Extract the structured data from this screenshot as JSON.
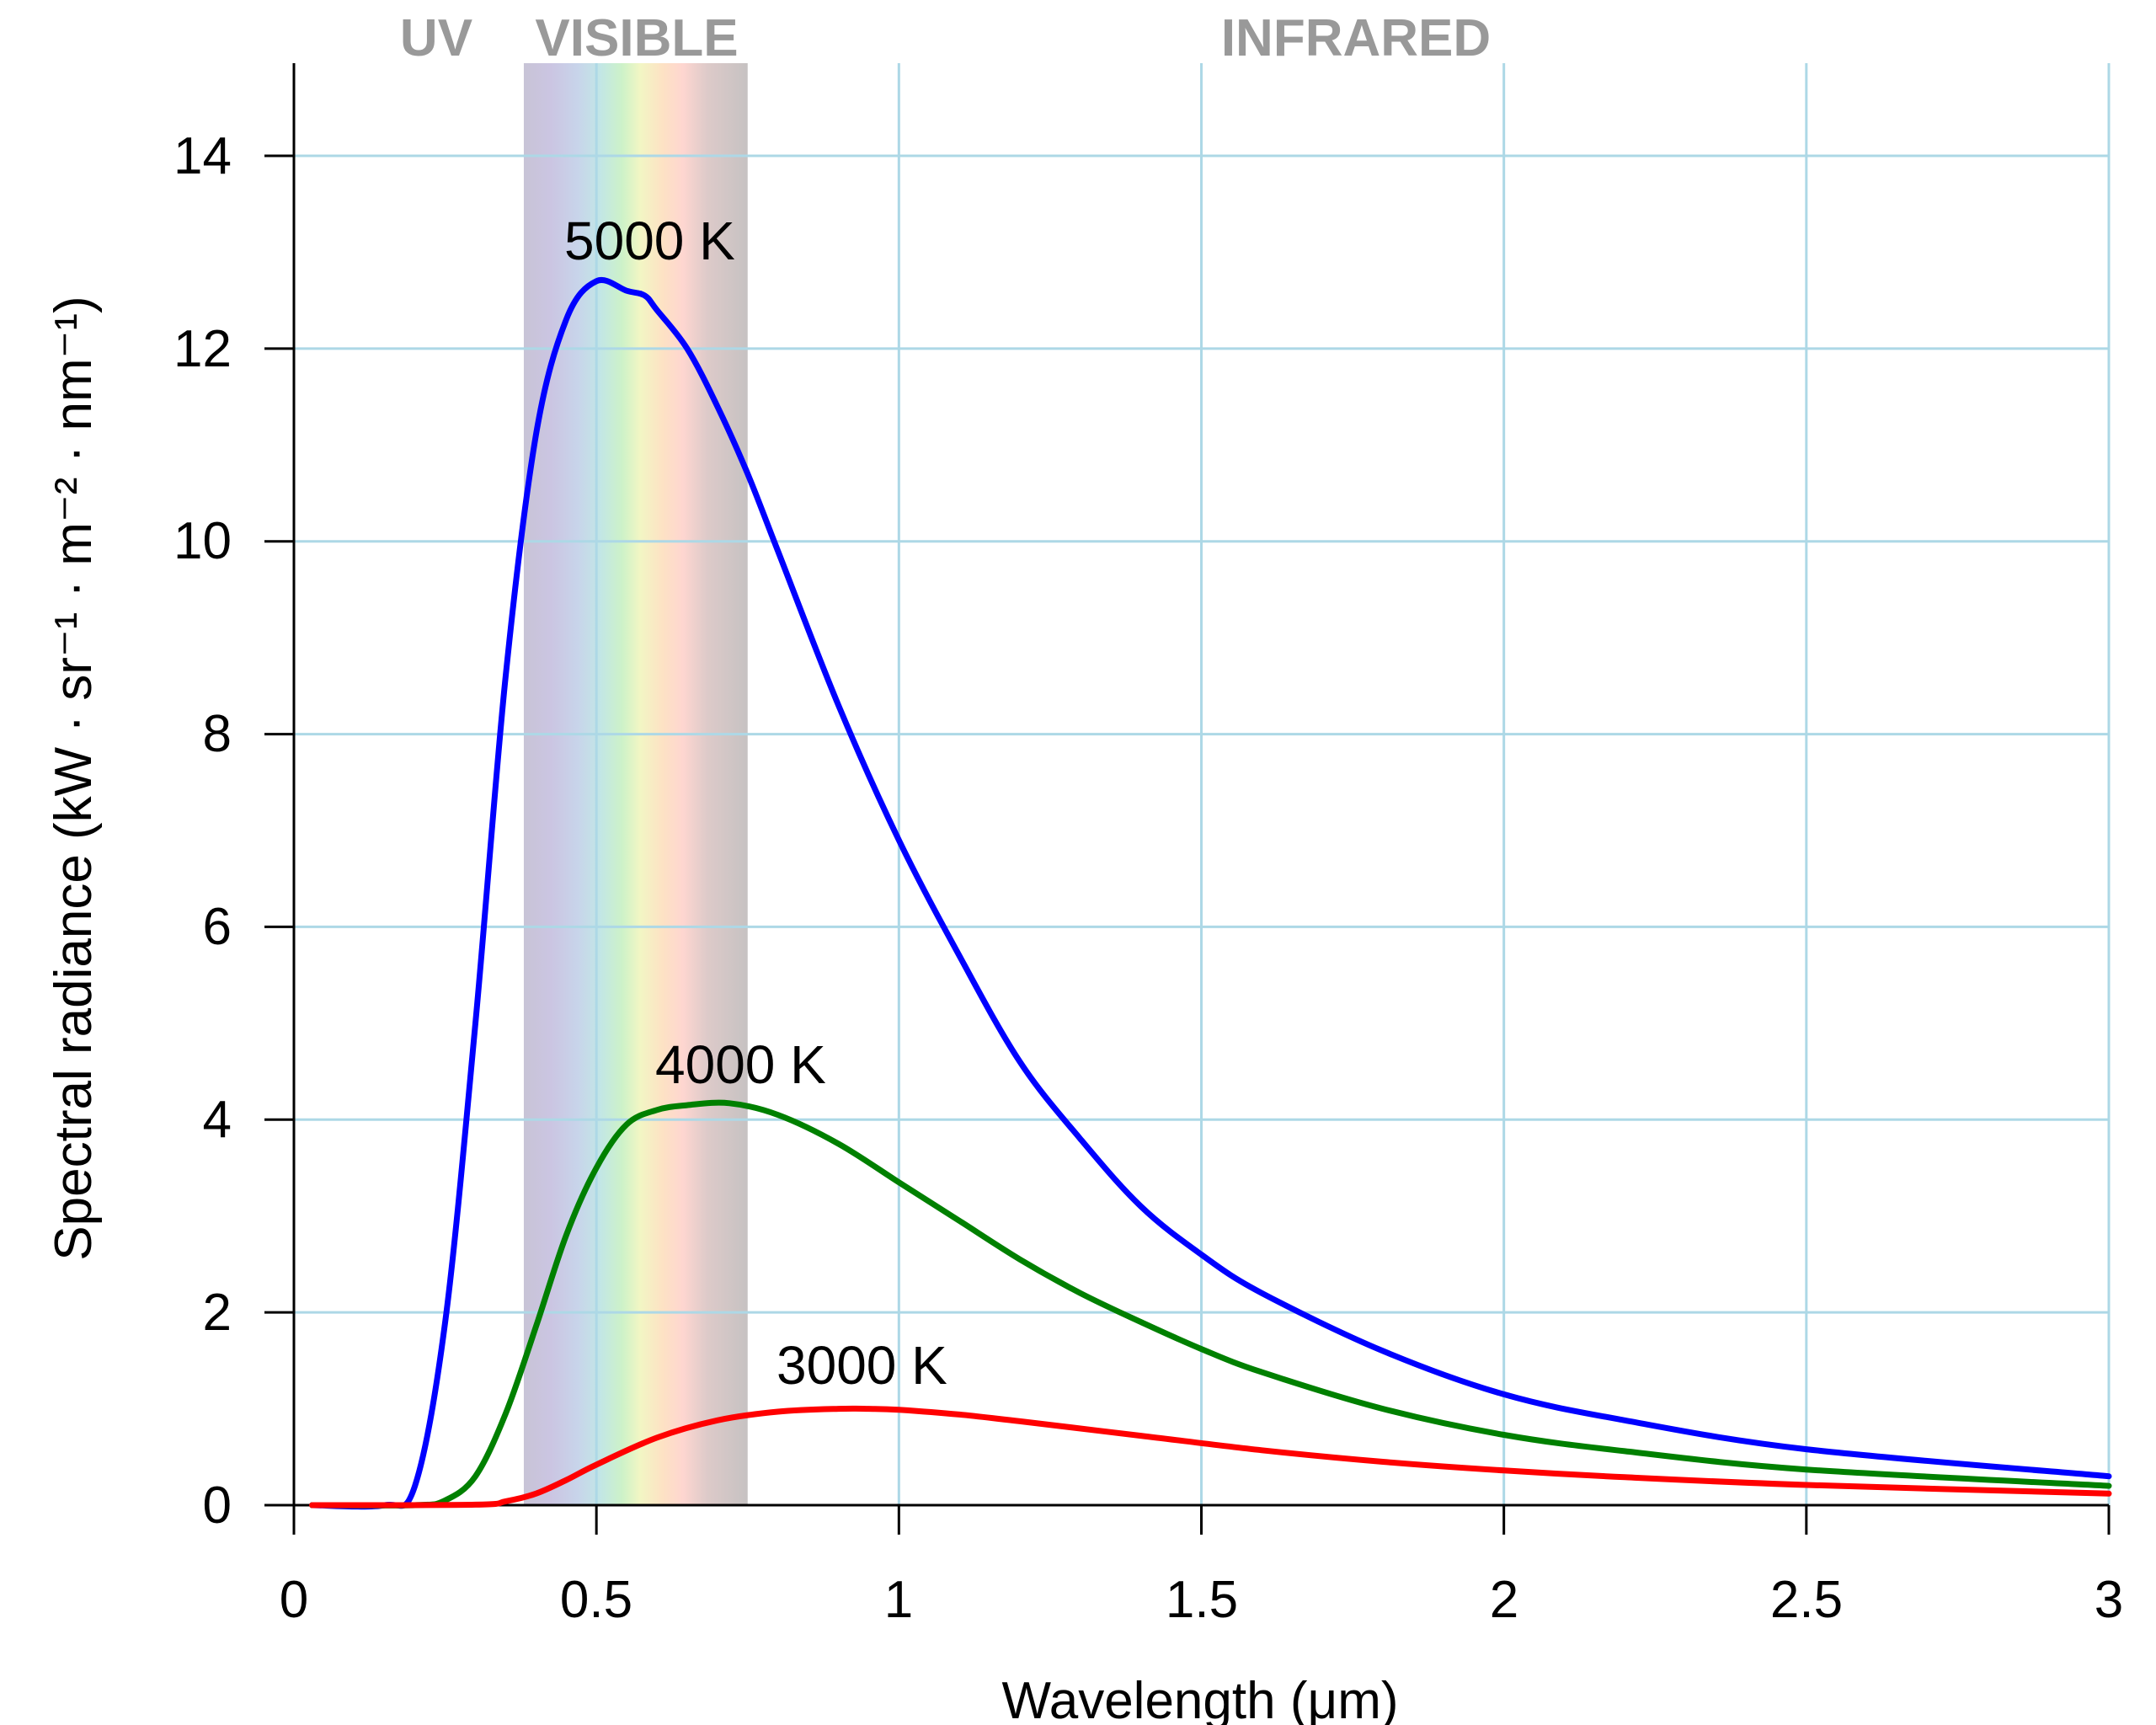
{
  "chart_data": {
    "type": "line",
    "xlabel": "Wavelength (μm)",
    "ylabel": "Spectral radiance (kW · sr⁻¹ · m⁻² · nm⁻¹)",
    "xlim": [
      0,
      3
    ],
    "ylim": [
      0,
      14
    ],
    "x_ticks": [
      "0",
      "0.5",
      "1",
      "1.5",
      "2",
      "2.5",
      "3"
    ],
    "y_ticks": [
      "0",
      "2",
      "4",
      "6",
      "8",
      "10",
      "12",
      "14"
    ],
    "grid": true,
    "regions": [
      {
        "label": "UV",
        "color": "#999999"
      },
      {
        "label": "VISIBLE",
        "color": "#999999",
        "x_range": [
          0.38,
          0.75
        ]
      },
      {
        "label": "INFRARED",
        "color": "#999999"
      }
    ],
    "series": [
      {
        "name": "5000 K",
        "color": "#0000ff",
        "x": [
          0.03,
          0.15,
          0.2,
          0.25,
          0.3,
          0.35,
          0.4,
          0.45,
          0.5,
          0.55,
          0.58,
          0.6,
          0.65,
          0.7,
          0.75,
          0.8,
          0.9,
          1.0,
          1.1,
          1.2,
          1.3,
          1.4,
          1.5,
          1.6,
          1.8,
          2.0,
          2.2,
          2.5,
          3.0
        ],
        "values": [
          0,
          0,
          0.2,
          1.9,
          5.0,
          8.6,
          11.1,
          12.3,
          12.7,
          12.6,
          12.55,
          12.4,
          12.0,
          11.4,
          10.7,
          9.9,
          8.3,
          6.9,
          5.7,
          4.6,
          3.8,
          3.1,
          2.6,
          2.2,
          1.6,
          1.15,
          0.88,
          0.58,
          0.3
        ]
      },
      {
        "name": "4000 K",
        "color": "#008000",
        "x": [
          0.03,
          0.2,
          0.25,
          0.3,
          0.35,
          0.4,
          0.45,
          0.5,
          0.55,
          0.6,
          0.65,
          0.72,
          0.8,
          0.9,
          1.0,
          1.1,
          1.2,
          1.3,
          1.4,
          1.5,
          1.6,
          1.8,
          2.0,
          2.2,
          2.5,
          3.0
        ],
        "values": [
          0,
          0,
          0.05,
          0.3,
          0.95,
          1.85,
          2.8,
          3.5,
          3.95,
          4.1,
          4.15,
          4.17,
          4.05,
          3.75,
          3.35,
          2.95,
          2.55,
          2.2,
          1.9,
          1.62,
          1.38,
          1.0,
          0.73,
          0.56,
          0.37,
          0.2
        ]
      },
      {
        "name": "3000 K",
        "color": "#ff0000",
        "x": [
          0.03,
          0.3,
          0.35,
          0.4,
          0.45,
          0.5,
          0.6,
          0.7,
          0.8,
          0.9,
          0.95,
          1.0,
          1.1,
          1.2,
          1.4,
          1.6,
          1.8,
          2.0,
          2.2,
          2.5,
          3.0
        ],
        "values": [
          0,
          0.005,
          0.04,
          0.12,
          0.26,
          0.42,
          0.7,
          0.88,
          0.97,
          1.0,
          1.0,
          0.99,
          0.94,
          0.87,
          0.72,
          0.57,
          0.45,
          0.36,
          0.29,
          0.21,
          0.12
        ]
      }
    ]
  }
}
